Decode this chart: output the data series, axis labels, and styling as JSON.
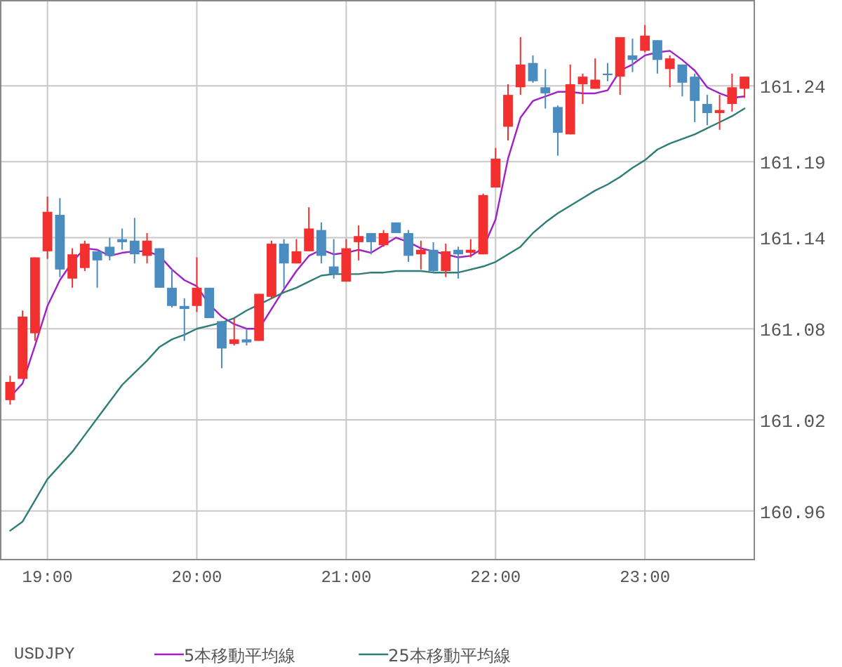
{
  "chart_data": {
    "type": "candlestick",
    "title": "USDJPY",
    "x": [
      18.75,
      18.8333,
      18.9167,
      19,
      19.0833,
      19.1667,
      19.25,
      19.3333,
      19.4167,
      19.5,
      19.5833,
      19.6667,
      19.75,
      19.8333,
      19.9167,
      20,
      20.0833,
      20.1667,
      20.25,
      20.3333,
      20.4167,
      20.5,
      20.5833,
      20.6667,
      20.75,
      20.8333,
      20.9167,
      21,
      21.0833,
      21.1667,
      21.25,
      21.3333,
      21.4167,
      21.5,
      21.5833,
      21.6667,
      21.75,
      21.8333,
      21.9167,
      22,
      22.0833,
      22.1667,
      22.25,
      22.3333,
      22.4167,
      22.5,
      22.5833,
      22.6667,
      22.75,
      22.8333,
      22.9167,
      23,
      23.0833,
      23.1667,
      23.25,
      23.3333,
      23.4167,
      23.5,
      23.5833,
      23.6667
    ],
    "ohlc": [
      [
        161.033,
        161.049,
        161.03,
        161.045
      ],
      [
        161.047,
        161.092,
        161.047,
        161.088
      ],
      [
        161.077,
        161.127,
        161.072,
        161.127
      ],
      [
        161.131,
        161.167,
        161.126,
        161.157
      ],
      [
        161.155,
        161.166,
        161.114,
        161.119
      ],
      [
        161.113,
        161.133,
        161.107,
        161.129
      ],
      [
        161.12,
        161.138,
        161.118,
        161.136
      ],
      [
        161.131,
        161.131,
        161.107,
        161.125
      ],
      [
        161.134,
        161.14,
        161.125,
        161.128
      ],
      [
        161.139,
        161.146,
        161.132,
        161.137
      ],
      [
        161.138,
        161.153,
        161.123,
        161.129
      ],
      [
        161.128,
        161.143,
        161.123,
        161.138
      ],
      [
        161.133,
        161.133,
        161.107,
        161.107
      ],
      [
        161.107,
        161.119,
        161.094,
        161.095
      ],
      [
        161.095,
        161.1,
        161.072,
        161.093
      ],
      [
        161.095,
        161.127,
        161.091,
        161.107
      ],
      [
        161.107,
        161.107,
        161.087,
        161.087
      ],
      [
        161.085,
        161.085,
        161.054,
        161.067
      ],
      [
        161.07,
        161.087,
        161.069,
        161.073
      ],
      [
        161.073,
        161.08,
        161.069,
        161.071
      ],
      [
        161.072,
        161.103,
        161.072,
        161.103
      ],
      [
        161.101,
        161.138,
        161.1,
        161.136
      ],
      [
        161.136,
        161.139,
        161.107,
        161.123
      ],
      [
        161.123,
        161.139,
        161.123,
        161.131
      ],
      [
        161.131,
        161.16,
        161.131,
        161.146
      ],
      [
        161.145,
        161.15,
        161.123,
        161.128
      ],
      [
        161.121,
        161.139,
        161.113,
        161.116
      ],
      [
        161.111,
        161.139,
        161.111,
        161.133
      ],
      [
        161.137,
        161.148,
        161.125,
        161.141
      ],
      [
        161.143,
        161.143,
        161.129,
        161.137
      ],
      [
        161.135,
        161.145,
        161.134,
        161.143
      ],
      [
        161.15,
        161.15,
        161.143,
        161.143
      ],
      [
        161.143,
        161.145,
        161.124,
        161.128
      ],
      [
        161.129,
        161.138,
        161.119,
        161.132
      ],
      [
        161.132,
        161.137,
        161.117,
        161.118
      ],
      [
        161.118,
        161.136,
        161.114,
        161.131
      ],
      [
        161.132,
        161.134,
        161.113,
        161.129
      ],
      [
        161.13,
        161.139,
        161.127,
        161.132
      ],
      [
        161.129,
        161.169,
        161.129,
        161.168
      ],
      [
        161.173,
        161.199,
        161.173,
        161.192
      ],
      [
        161.213,
        161.241,
        161.204,
        161.234
      ],
      [
        161.239,
        161.272,
        161.234,
        161.254
      ],
      [
        161.255,
        161.26,
        161.242,
        161.243
      ],
      [
        161.239,
        161.251,
        161.225,
        161.235
      ],
      [
        161.226,
        161.227,
        161.194,
        161.209
      ],
      [
        161.208,
        161.254,
        161.208,
        161.241
      ],
      [
        161.241,
        161.248,
        161.228,
        161.246
      ],
      [
        161.238,
        161.258,
        161.238,
        161.244
      ],
      [
        161.248,
        161.255,
        161.243,
        161.247
      ],
      [
        161.246,
        161.272,
        161.234,
        161.272
      ],
      [
        161.26,
        161.271,
        161.249,
        161.257
      ],
      [
        161.263,
        161.28,
        161.262,
        161.273
      ],
      [
        161.27,
        161.27,
        161.248,
        161.257
      ],
      [
        161.251,
        161.26,
        161.239,
        161.258
      ],
      [
        161.254,
        161.254,
        161.233,
        161.242
      ],
      [
        161.246,
        161.248,
        161.216,
        161.23
      ],
      [
        161.228,
        161.234,
        161.214,
        161.222
      ],
      [
        161.222,
        161.234,
        161.211,
        161.224
      ],
      [
        161.228,
        161.248,
        161.223,
        161.239
      ],
      [
        161.238,
        161.246,
        161.232,
        161.246
      ]
    ],
    "colors": [
      "#f23030",
      "#f23030",
      "#f23030",
      "#f23030",
      "#4a8cc0",
      "#f23030",
      "#f23030",
      "#4a8cc0",
      "#4a8cc0",
      "#4a8cc0",
      "#4a8cc0",
      "#f23030",
      "#4a8cc0",
      "#4a8cc0",
      "#4a8cc0",
      "#f23030",
      "#4a8cc0",
      "#4a8cc0",
      "#f23030",
      "#4a8cc0",
      "#f23030",
      "#f23030",
      "#4a8cc0",
      "#f23030",
      "#f23030",
      "#4a8cc0",
      "#4a8cc0",
      "#f23030",
      "#f23030",
      "#4a8cc0",
      "#f23030",
      "#4a8cc0",
      "#4a8cc0",
      "#f23030",
      "#4a8cc0",
      "#f23030",
      "#4a8cc0",
      "#f23030",
      "#f23030",
      "#f23030",
      "#f23030",
      "#f23030",
      "#4a8cc0",
      "#4a8cc0",
      "#4a8cc0",
      "#f23030",
      "#f23030",
      "#f23030",
      "#4a8cc0",
      "#f23030",
      "#4a8cc0",
      "#f23030",
      "#4a8cc0",
      "#f23030",
      "#4a8cc0",
      "#4a8cc0",
      "#4a8cc0",
      "#f23030",
      "#f23030",
      "#f23030"
    ],
    "series": [
      {
        "type": "line",
        "name": "5本移動平均線",
        "color": "#a020c8",
        "values": [
          161.035,
          161.044,
          161.069,
          161.095,
          161.112,
          161.124,
          161.133,
          161.132,
          161.128,
          161.13,
          161.131,
          161.131,
          161.128,
          161.119,
          161.112,
          161.108,
          161.096,
          161.088,
          161.083,
          161.08,
          161.08,
          161.093,
          161.106,
          161.118,
          161.128,
          161.132,
          161.129,
          161.13,
          161.132,
          161.13,
          161.135,
          161.14,
          161.137,
          161.133,
          161.131,
          161.129,
          161.127,
          161.128,
          161.133,
          161.152,
          161.192,
          161.219,
          161.23,
          161.233,
          161.236,
          161.236,
          161.235,
          161.235,
          161.237,
          161.25,
          161.254,
          161.26,
          161.262,
          161.263,
          161.257,
          161.25,
          161.239,
          161.235,
          161.232,
          161.233
        ]
      },
      {
        "type": "line",
        "name": "25本移動平均線",
        "color": "#2e7d78",
        "values": [
          160.947,
          160.953,
          160.967,
          160.981,
          160.99,
          160.999,
          161.01,
          161.021,
          161.032,
          161.043,
          161.051,
          161.059,
          161.068,
          161.073,
          161.076,
          161.08,
          161.082,
          161.084,
          161.087,
          161.092,
          161.096,
          161.1,
          161.104,
          161.107,
          161.111,
          161.115,
          161.116,
          161.116,
          161.116,
          161.117,
          161.117,
          161.118,
          161.118,
          161.118,
          161.117,
          161.117,
          161.117,
          161.119,
          161.121,
          161.124,
          161.129,
          161.134,
          161.143,
          161.15,
          161.156,
          161.161,
          161.166,
          161.171,
          161.175,
          161.18,
          161.186,
          161.191,
          161.198,
          161.202,
          161.205,
          161.208,
          161.212,
          161.216,
          161.22,
          161.225
        ]
      }
    ],
    "xlim": [
      18.687,
      23.732
    ],
    "ylim": [
      160.928,
      161.296
    ],
    "xticks": [
      {
        "value": 19,
        "label": "19:00"
      },
      {
        "value": 20,
        "label": "20:00"
      },
      {
        "value": 21,
        "label": "21:00"
      },
      {
        "value": 22,
        "label": "22:00"
      },
      {
        "value": 23,
        "label": "23:00"
      }
    ],
    "yticks": [
      160.96,
      161.02,
      161.08,
      161.14,
      161.19,
      161.24
    ],
    "grid": true,
    "legend": "bottom"
  }
}
